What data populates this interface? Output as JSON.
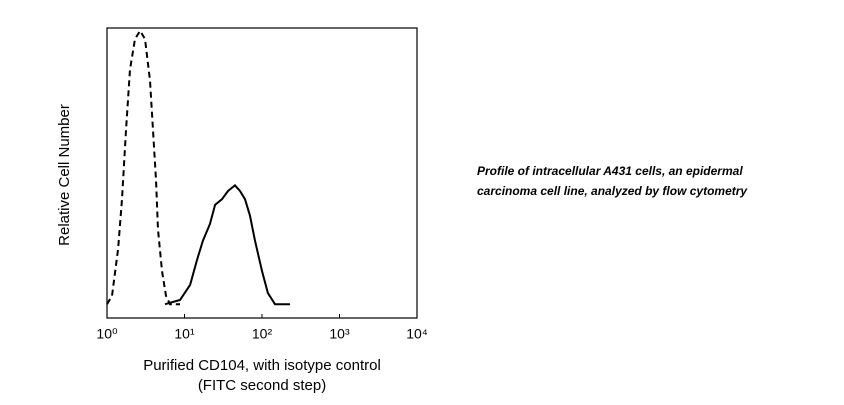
{
  "chart_data": {
    "type": "line",
    "x_label": [
      "Purified CD104, with isotype control",
      "(FITC second step)"
    ],
    "y_label": "Relative Cell Number",
    "caption": [
      "Profile of intracellular A431 cells, an epidermal",
      "carcinoma cell line, analyzed by flow cytometry"
    ],
    "xscale": "log",
    "xlim": [
      1,
      10000
    ],
    "xticks": [
      {
        "value": 1,
        "label": "10⁰"
      },
      {
        "value": 10,
        "label": "10¹"
      },
      {
        "value": 100,
        "label": "10²"
      },
      {
        "value": 1000,
        "label": "10³"
      },
      {
        "value": 10000,
        "label": "10⁴"
      }
    ],
    "ylim": [
      -5,
      100
    ],
    "series": [
      {
        "color": "#000000",
        "dash": true,
        "x": [
          1,
          1.16,
          1.39,
          1.56,
          1.76,
          1.98,
          2.3,
          2.67,
          3.09,
          3.59,
          3.92,
          4.29,
          4.55,
          5.12,
          5.77,
          6.5,
          8.75
        ],
        "values": [
          0,
          3,
          20,
          38,
          63,
          85,
          96,
          99,
          96,
          81,
          63,
          45,
          27,
          12,
          3,
          0,
          0
        ]
      },
      {
        "color": "#000000",
        "dash": false,
        "x": [
          5.6,
          8.75,
          11.8,
          14.5,
          17.3,
          21.3,
          24.8,
          30.5,
          36.4,
          44.9,
          52,
          60.4,
          70,
          81.3,
          100,
          119,
          147,
          230
        ],
        "values": [
          0,
          1.5,
          7,
          16,
          23,
          29,
          36,
          38,
          41,
          43,
          41,
          38,
          32,
          23,
          12,
          4,
          0,
          0
        ]
      }
    ]
  }
}
